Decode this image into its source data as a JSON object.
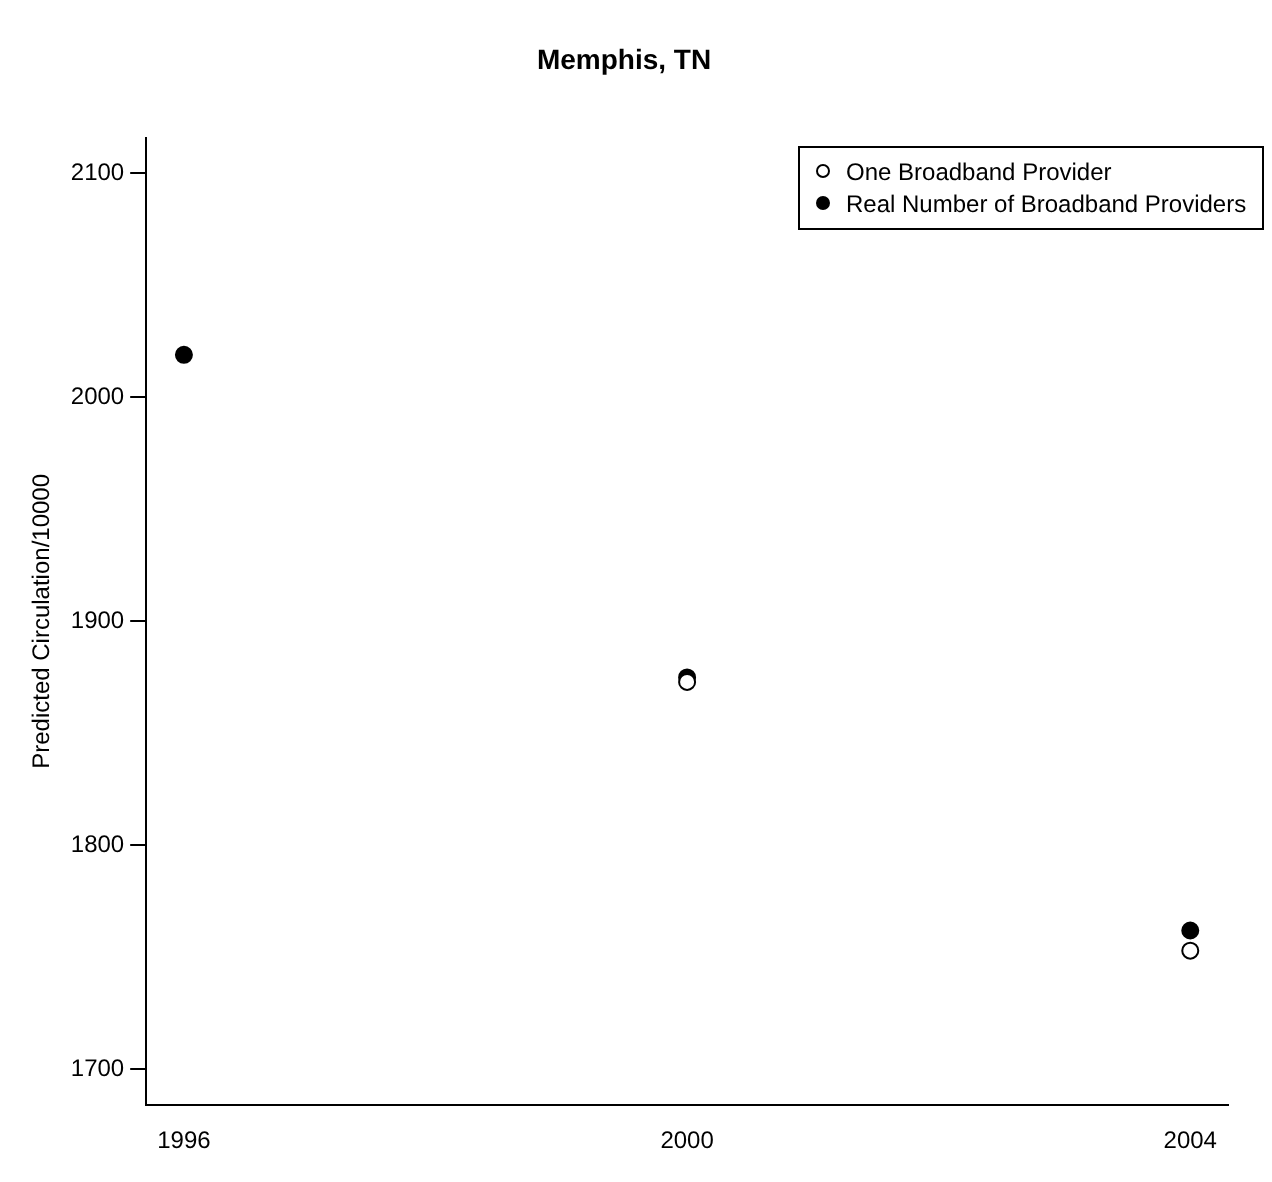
{
  "chart_data": {
    "type": "scatter",
    "title": "Memphis, TN",
    "ylabel": "Predicted Circulation/10000",
    "x": [
      1996,
      2000,
      2004
    ],
    "series": [
      {
        "name": "One Broadband Provider",
        "color": "#ffffff",
        "values": [
          null,
          1873,
          1753
        ]
      },
      {
        "name": "Real Number of Broadband Providers",
        "color": "#000000",
        "values": [
          2019,
          1875,
          1762
        ]
      }
    ],
    "xlim": [
      1995.7,
      2004.3
    ],
    "xticks": [
      1996,
      2000,
      2004
    ],
    "ylim": [
      1684,
      2116
    ],
    "yticks": [
      1700,
      1800,
      1900,
      2000,
      2100
    ],
    "grid": false,
    "legend": "top right",
    "marker": "circle"
  }
}
